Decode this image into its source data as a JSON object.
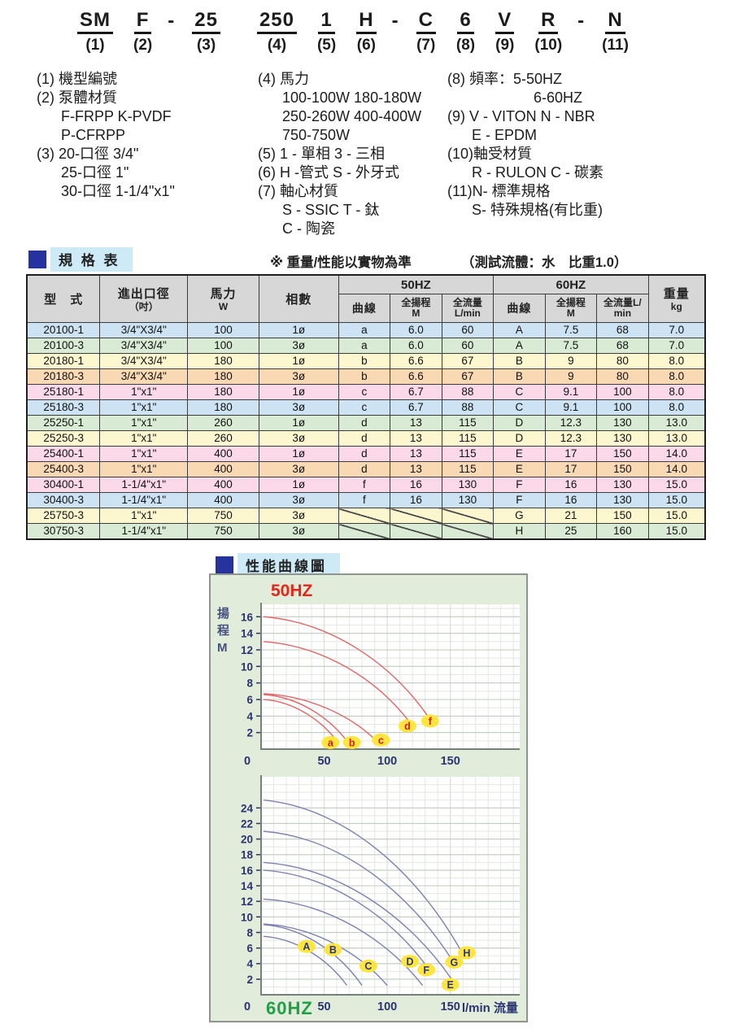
{
  "model_code": {
    "groups": [
      {
        "token": "SM",
        "num": "(1)"
      },
      {
        "token": "F",
        "num": "(2)",
        "dash_after": true
      },
      {
        "token": "25",
        "num": "(3)"
      },
      {
        "token": "250",
        "num": "(4)",
        "gap_before": true
      },
      {
        "token": "1",
        "num": "(5)"
      },
      {
        "token": "H",
        "num": "(6)",
        "dash_after": true
      },
      {
        "token": "C",
        "num": "(7)"
      },
      {
        "token": "6",
        "num": "(8)"
      },
      {
        "token": "V",
        "num": "(9)"
      },
      {
        "token": "R",
        "num": "(10)",
        "dash_after": true
      },
      {
        "token": "N",
        "num": "(11)"
      }
    ],
    "dash": "-"
  },
  "legend": {
    "col1": [
      {
        "text": "(1) 機型編號",
        "indent": 0
      },
      {
        "text": "(2) 泵體材質",
        "indent": 0
      },
      {
        "text": "F-FRPP  K-PVDF",
        "indent": 1
      },
      {
        "text": "P-CFRPP",
        "indent": 1
      },
      {
        "text": "(3) 20-口徑 3/4\"",
        "indent": 0
      },
      {
        "text": "25-口徑 1\"",
        "indent": 1
      },
      {
        "text": "30-口徑 1-1/4\"x1\"",
        "indent": 1
      }
    ],
    "col2": [
      {
        "text": "(4) 馬力",
        "indent": 0
      },
      {
        "text": "100-100W  180-180W",
        "indent": 1
      },
      {
        "text": "250-260W  400-400W",
        "indent": 1
      },
      {
        "text": "750-750W",
        "indent": 1
      },
      {
        "text": "(5) 1 - 單相  3 - 三相",
        "indent": 0
      },
      {
        "text": "(6) H -管式  S - 外牙式",
        "indent": 0
      },
      {
        "text": "(7) 軸心材質",
        "indent": 0
      },
      {
        "text": "S - SSIC  T - 鈦",
        "indent": 1
      },
      {
        "text": "C - 陶瓷",
        "indent": 1
      }
    ],
    "col3": [
      {
        "text": "(8) 頻率：5-50HZ",
        "indent": 0
      },
      {
        "text": "6-60HZ",
        "indent": 2
      },
      {
        "text": "(9) V - VITON   N - NBR",
        "indent": 0
      },
      {
        "text": "E - EPDM",
        "indent": 1
      },
      {
        "text": "(10)軸受材質",
        "indent": 0
      },
      {
        "text": "R - RULON   C - 碳素",
        "indent": 1
      },
      {
        "text": "(11)N- 標準規格",
        "indent": 0
      },
      {
        "text": "S- 特殊規格(有比重)",
        "indent": 1
      }
    ]
  },
  "spec": {
    "title": "規 格 表",
    "note1": "※ 重量/性能以實物為準",
    "note2": "（測試流體：水　比重1.0）",
    "header": {
      "model": "型　式",
      "size_l1": "進出口徑",
      "size_l2": "（吋）",
      "power_l1": "馬力",
      "power_l2": "W",
      "phase": "相數",
      "hz50": "50HZ",
      "hz60": "60HZ",
      "curve": "曲線",
      "head_l1": "全揚程",
      "head_l2": "M",
      "flow50_l1": "全流量",
      "flow50_l2": "L/min",
      "flow60_l1": "全流量L/",
      "flow60_l2": "min",
      "weight_l1": "重量",
      "weight_l2": "kg"
    },
    "rows": [
      {
        "model": "20100-1",
        "size": "3/4\"X3/4\"",
        "power": "100",
        "phase": "1ø",
        "c50": [
          "a",
          "6.0",
          "60"
        ],
        "c60": [
          "A",
          "7.5",
          "68"
        ],
        "weight": "7.0",
        "color": "blue"
      },
      {
        "model": "20100-3",
        "size": "3/4\"X3/4\"",
        "power": "100",
        "phase": "3ø",
        "c50": [
          "a",
          "6.0",
          "60"
        ],
        "c60": [
          "A",
          "7.5",
          "68"
        ],
        "weight": "7.0",
        "color": "green"
      },
      {
        "model": "20180-1",
        "size": "3/4\"X3/4\"",
        "power": "180",
        "phase": "1ø",
        "c50": [
          "b",
          "6.6",
          "67"
        ],
        "c60": [
          "B",
          "9",
          "80"
        ],
        "weight": "8.0",
        "color": "yellow"
      },
      {
        "model": "20180-3",
        "size": "3/4\"X3/4\"",
        "power": "180",
        "phase": "3ø",
        "c50": [
          "b",
          "6.6",
          "67"
        ],
        "c60": [
          "B",
          "9",
          "80"
        ],
        "weight": "8.0",
        "color": "orange"
      },
      {
        "model": "25180-1",
        "size": "1\"x1\"",
        "power": "180",
        "phase": "1ø",
        "c50": [
          "c",
          "6.7",
          "88"
        ],
        "c60": [
          "C",
          "9.1",
          "100"
        ],
        "weight": "8.0",
        "color": "pink"
      },
      {
        "model": "25180-3",
        "size": "1\"x1\"",
        "power": "180",
        "phase": "3ø",
        "c50": [
          "c",
          "6.7",
          "88"
        ],
        "c60": [
          "C",
          "9.1",
          "100"
        ],
        "weight": "8.0",
        "color": "blue"
      },
      {
        "model": "25250-1",
        "size": "1\"x1\"",
        "power": "260",
        "phase": "1ø",
        "c50": [
          "d",
          "13",
          "115"
        ],
        "c60": [
          "D",
          "12.3",
          "130"
        ],
        "weight": "13.0",
        "color": "green"
      },
      {
        "model": "25250-3",
        "size": "1\"x1\"",
        "power": "260",
        "phase": "3ø",
        "c50": [
          "d",
          "13",
          "115"
        ],
        "c60": [
          "D",
          "12.3",
          "130"
        ],
        "weight": "13.0",
        "color": "yellow"
      },
      {
        "model": "25400-1",
        "size": "1\"x1\"",
        "power": "400",
        "phase": "1ø",
        "c50": [
          "d",
          "13",
          "115"
        ],
        "c60": [
          "E",
          "17",
          "150"
        ],
        "weight": "14.0",
        "color": "pink"
      },
      {
        "model": "25400-3",
        "size": "1\"x1\"",
        "power": "400",
        "phase": "3ø",
        "c50": [
          "d",
          "13",
          "115"
        ],
        "c60": [
          "E",
          "17",
          "150"
        ],
        "weight": "14.0",
        "color": "orange"
      },
      {
        "model": "30400-1",
        "size": "1-1/4\"x1\"",
        "power": "400",
        "phase": "1ø",
        "c50": [
          "f",
          "16",
          "130"
        ],
        "c60": [
          "F",
          "16",
          "130"
        ],
        "weight": "15.0",
        "color": "pink"
      },
      {
        "model": "30400-3",
        "size": "1-1/4\"x1\"",
        "power": "400",
        "phase": "3ø",
        "c50": [
          "f",
          "16",
          "130"
        ],
        "c60": [
          "F",
          "16",
          "130"
        ],
        "weight": "15.0",
        "color": "blue"
      },
      {
        "model": "25750-3",
        "size": "1\"x1\"",
        "power": "750",
        "phase": "3ø",
        "c50": [
          "/",
          "/",
          "/"
        ],
        "c60": [
          "G",
          "21",
          "150"
        ],
        "weight": "15.0",
        "color": "yellow"
      },
      {
        "model": "30750-3",
        "size": "1-1/4\"x1\"",
        "power": "750",
        "phase": "3ø",
        "c50": [
          "/",
          "/",
          "/"
        ],
        "c60": [
          "H",
          "25",
          "160"
        ],
        "weight": "15.0",
        "color": "green"
      }
    ]
  },
  "charts": {
    "section_title": "性能曲線圖"
  },
  "chart_data": [
    {
      "type": "line",
      "title": "50HZ",
      "title_color": "#e32819",
      "ylabel_chars": [
        "揚",
        "程",
        "M"
      ],
      "xlabel": "",
      "x_ticks": [
        0,
        50,
        100,
        150
      ],
      "x_range": [
        0,
        205
      ],
      "y_ticks": [
        2,
        4,
        6,
        8,
        10,
        12,
        14,
        16
      ],
      "y_range": [
        0,
        17.5
      ],
      "grid": true,
      "curve_color": "#e06767",
      "badge_color": "#ffe53e",
      "badge_text_color": "#d31f1f",
      "series": [
        {
          "name": "a",
          "max_head_m": 6.0,
          "max_flow_lmin": 60,
          "draw_end": [
            60,
            1.0
          ],
          "label_xy": [
            55,
            0.8
          ]
        },
        {
          "name": "b",
          "max_head_m": 6.6,
          "max_flow_lmin": 67,
          "draw_end": [
            68,
            1.0
          ],
          "label_xy": [
            72,
            0.8
          ]
        },
        {
          "name": "c",
          "max_head_m": 6.7,
          "max_flow_lmin": 88,
          "draw_end": [
            90,
            1.2
          ],
          "label_xy": [
            95,
            1.1
          ]
        },
        {
          "name": "d",
          "max_head_m": 13,
          "max_flow_lmin": 115,
          "draw_end": [
            118,
            3.2
          ],
          "label_xy": [
            116,
            2.8
          ]
        },
        {
          "name": "f",
          "max_head_m": 16,
          "max_flow_lmin": 130,
          "draw_end": [
            133,
            3.8
          ],
          "label_xy": [
            134,
            3.4
          ]
        }
      ]
    },
    {
      "type": "line",
      "title": "60HZ",
      "title_color": "#1fa045",
      "xlabel": "l/min 流量",
      "x_ticks": [
        0,
        50,
        100,
        150
      ],
      "x_range": [
        0,
        205
      ],
      "y_ticks": [
        2,
        4,
        6,
        8,
        10,
        12,
        14,
        16,
        18,
        20,
        22,
        24
      ],
      "y_range": [
        0,
        28
      ],
      "grid": true,
      "curve_color": "#7c81b2",
      "badge_color": "#ffe53e",
      "badge_text_color": "#273786",
      "series": [
        {
          "name": "A",
          "max_head_m": 7.5,
          "max_flow_lmin": 68,
          "draw_end": [
            68,
            1.2
          ],
          "label_xy": [
            36,
            6.2
          ]
        },
        {
          "name": "B",
          "max_head_m": 9,
          "max_flow_lmin": 80,
          "draw_end": [
            80,
            1.2
          ],
          "label_xy": [
            57,
            5.8
          ]
        },
        {
          "name": "C",
          "max_head_m": 9.1,
          "max_flow_lmin": 100,
          "draw_end": [
            100,
            1.2
          ],
          "label_xy": [
            85,
            3.7
          ]
        },
        {
          "name": "D",
          "max_head_m": 12.3,
          "max_flow_lmin": 130,
          "draw_end": [
            128,
            1.2
          ],
          "label_xy": [
            118,
            4.3
          ]
        },
        {
          "name": "E",
          "max_head_m": 17,
          "max_flow_lmin": 150,
          "draw_end": [
            151,
            2.0
          ],
          "label_xy": [
            150,
            1.3
          ]
        },
        {
          "name": "F",
          "max_head_m": 16,
          "max_flow_lmin": 130,
          "draw_end": [
            135,
            2.8
          ],
          "label_xy": [
            131,
            3.2
          ]
        },
        {
          "name": "G",
          "max_head_m": 21,
          "max_flow_lmin": 150,
          "draw_end": [
            155,
            3.5
          ],
          "label_xy": [
            153,
            4.2
          ]
        },
        {
          "name": "H",
          "max_head_m": 25,
          "max_flow_lmin": 160,
          "draw_end": [
            162,
            4.6
          ],
          "label_xy": [
            163,
            5.4
          ]
        }
      ]
    }
  ],
  "colors": {
    "row_blue": "#cde3f3",
    "row_green": "#d9ebd5",
    "row_yellow": "#fdf7d0",
    "row_orange": "#f9d8b4",
    "row_pink": "#fbd9e9",
    "header_gray": "#d7d7d7",
    "title_square": "#26339e",
    "title_strip": "#cdeaf6",
    "panel_bg": "#e2ecda",
    "axis": "#6b7280",
    "tick_text": "#2a3470",
    "grid_minor": "#e4e8e1",
    "grid_major": "#bfc9bf"
  }
}
